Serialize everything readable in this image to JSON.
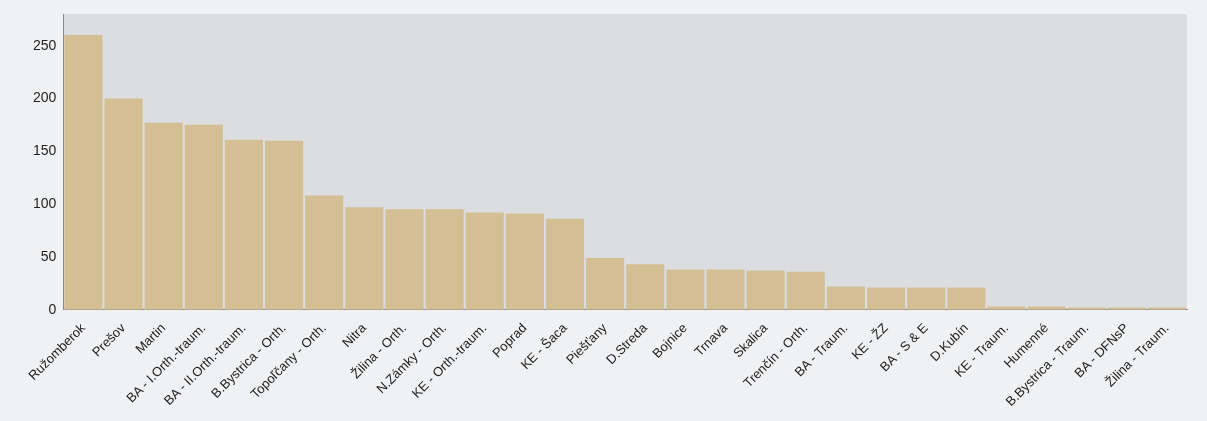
{
  "chart_data": {
    "type": "bar",
    "categories": [
      "Ružomberok",
      "Prešov",
      "Martin",
      "BA - I.Orth.-traum.",
      "BA - II.Orth.-traum.",
      "B.Bystrica - Orth.",
      "Topoľčany - Orth.",
      "Nitra",
      "Žilina - Orth.",
      "N.Zámky - Orth.",
      "KE - Orth.-traum.",
      "Poprad",
      "KE - Šaca",
      "Piešťany",
      "D.Streda",
      "Bojnice",
      "Trnava",
      "Skalica",
      "Trenčín - Orth.",
      "BA - Traum.",
      "KE - ŽZ",
      "BA - S & E",
      "D.Kubín",
      "KE - Traum.",
      "Humenné",
      "B.Bystrica - Traum.",
      "BA - DFNsP",
      "Žilina - Traum."
    ],
    "values": [
      260,
      200,
      177,
      175,
      161,
      160,
      108,
      97,
      95,
      95,
      92,
      91,
      86,
      49,
      43,
      38,
      38,
      37,
      36,
      22,
      21,
      21,
      21,
      3,
      3,
      2,
      2,
      2
    ],
    "color": "#d4bf94",
    "ylim": [
      0,
      280
    ],
    "yticks": [
      0,
      50,
      100,
      150,
      200,
      250
    ],
    "grid": false,
    "legend": false
  }
}
